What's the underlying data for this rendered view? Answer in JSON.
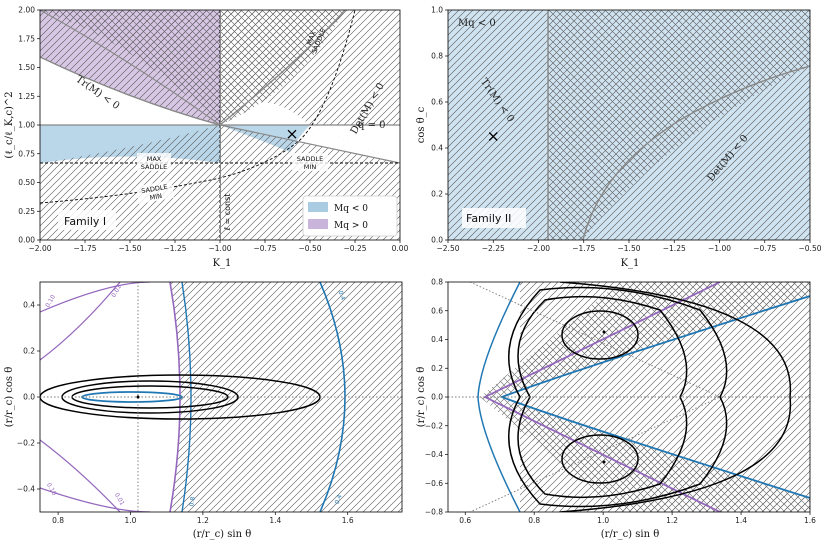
{
  "chart_data": [
    {
      "type": "region",
      "xlabel": "K_1",
      "ylabel": "(ℓ_c/ℓ_K,c)^2",
      "xlim": [
        -2.0,
        0.0
      ],
      "ylim": [
        0.0,
        2.0
      ],
      "xticks": [
        "-2.00",
        "-1.75",
        "-1.50",
        "-1.25",
        "-1.00",
        "-0.75",
        "-0.50",
        "-0.25",
        "0.00"
      ],
      "yticks": [
        "0.00",
        "0.25",
        "0.50",
        "0.75",
        "1.00",
        "1.25",
        "1.50",
        "1.75",
        "2.00"
      ],
      "labels": {
        "family": "Family I",
        "tr": "Tr(M) < 0",
        "det": "Det(M) < 0",
        "q0": "q = 0",
        "maxsaddle": [
          "MAX",
          "SADDLE"
        ],
        "maxsaddle_top": [
          "MAX",
          "SADDLE"
        ],
        "saddlemin_mid": [
          "SADDLE",
          "MIN"
        ],
        "saddlemin_low": [
          "SADDLE",
          "MIN"
        ],
        "lconst": "ℓ = const"
      },
      "legend": [
        {
          "label": "Mq < 0",
          "color": "#a9cce3"
        },
        {
          "label": "Mq > 0",
          "color": "#c9b4dc"
        }
      ],
      "marker": {
        "x": -0.6,
        "y": 0.92
      },
      "colors": {
        "blue": "#a9cce3",
        "purple": "#c9b4dc",
        "boundary": "#888888"
      }
    },
    {
      "type": "region",
      "xlabel": "K_1",
      "ylabel": "cos θ_c",
      "xlim": [
        -2.5,
        -0.5
      ],
      "ylim": [
        0.0,
        1.0
      ],
      "xticks": [
        "-2.50",
        "-2.25",
        "-2.00",
        "-1.75",
        "-1.50",
        "-1.25",
        "-1.00",
        "-0.75",
        "-0.50"
      ],
      "yticks": [
        "0.0",
        "0.2",
        "0.4",
        "0.6",
        "0.8",
        "1.0"
      ],
      "labels": {
        "family": "Family II",
        "mq": "Mq < 0",
        "tr": "Tr(M) < 0",
        "det": "Det(M) < 0"
      },
      "marker": {
        "x": -2.25,
        "y": 0.45
      },
      "colors": {
        "blue": "#a9cce3"
      }
    },
    {
      "type": "contour",
      "xlabel": "(r/r_c) sin θ",
      "ylabel": "(r/r_c) cos θ",
      "xlim": [
        0.75,
        1.75
      ],
      "ylim": [
        -0.5,
        0.5
      ],
      "xticks": [
        "0.8",
        "1.0",
        "1.2",
        "1.4",
        "1.6"
      ],
      "yticks": [
        "-0.4",
        "-0.2",
        "0.0",
        "0.2",
        "0.4"
      ],
      "contour_labels": [
        "0.10",
        "0.01",
        "0.01",
        "0.10",
        "0.4",
        "0.4",
        "0.8"
      ],
      "colors": {
        "purple": "#9467bd",
        "blue": "#1f77b4",
        "black": "#000000"
      }
    },
    {
      "type": "contour",
      "xlabel": "(r/r_c) sin θ",
      "ylabel": "(r/r_c) cos θ",
      "xlim": [
        0.55,
        1.6
      ],
      "ylim": [
        -0.8,
        0.8
      ],
      "xticks": [
        "0.6",
        "0.8",
        "1.0",
        "1.2",
        "1.4",
        "1.6"
      ],
      "yticks": [
        "-0.8",
        "-0.6",
        "-0.4",
        "-0.2",
        "0.0",
        "0.2",
        "0.4",
        "0.6",
        "0.8"
      ],
      "colors": {
        "purple": "#9467bd",
        "blue": "#1f77b4",
        "black": "#000000"
      }
    }
  ]
}
